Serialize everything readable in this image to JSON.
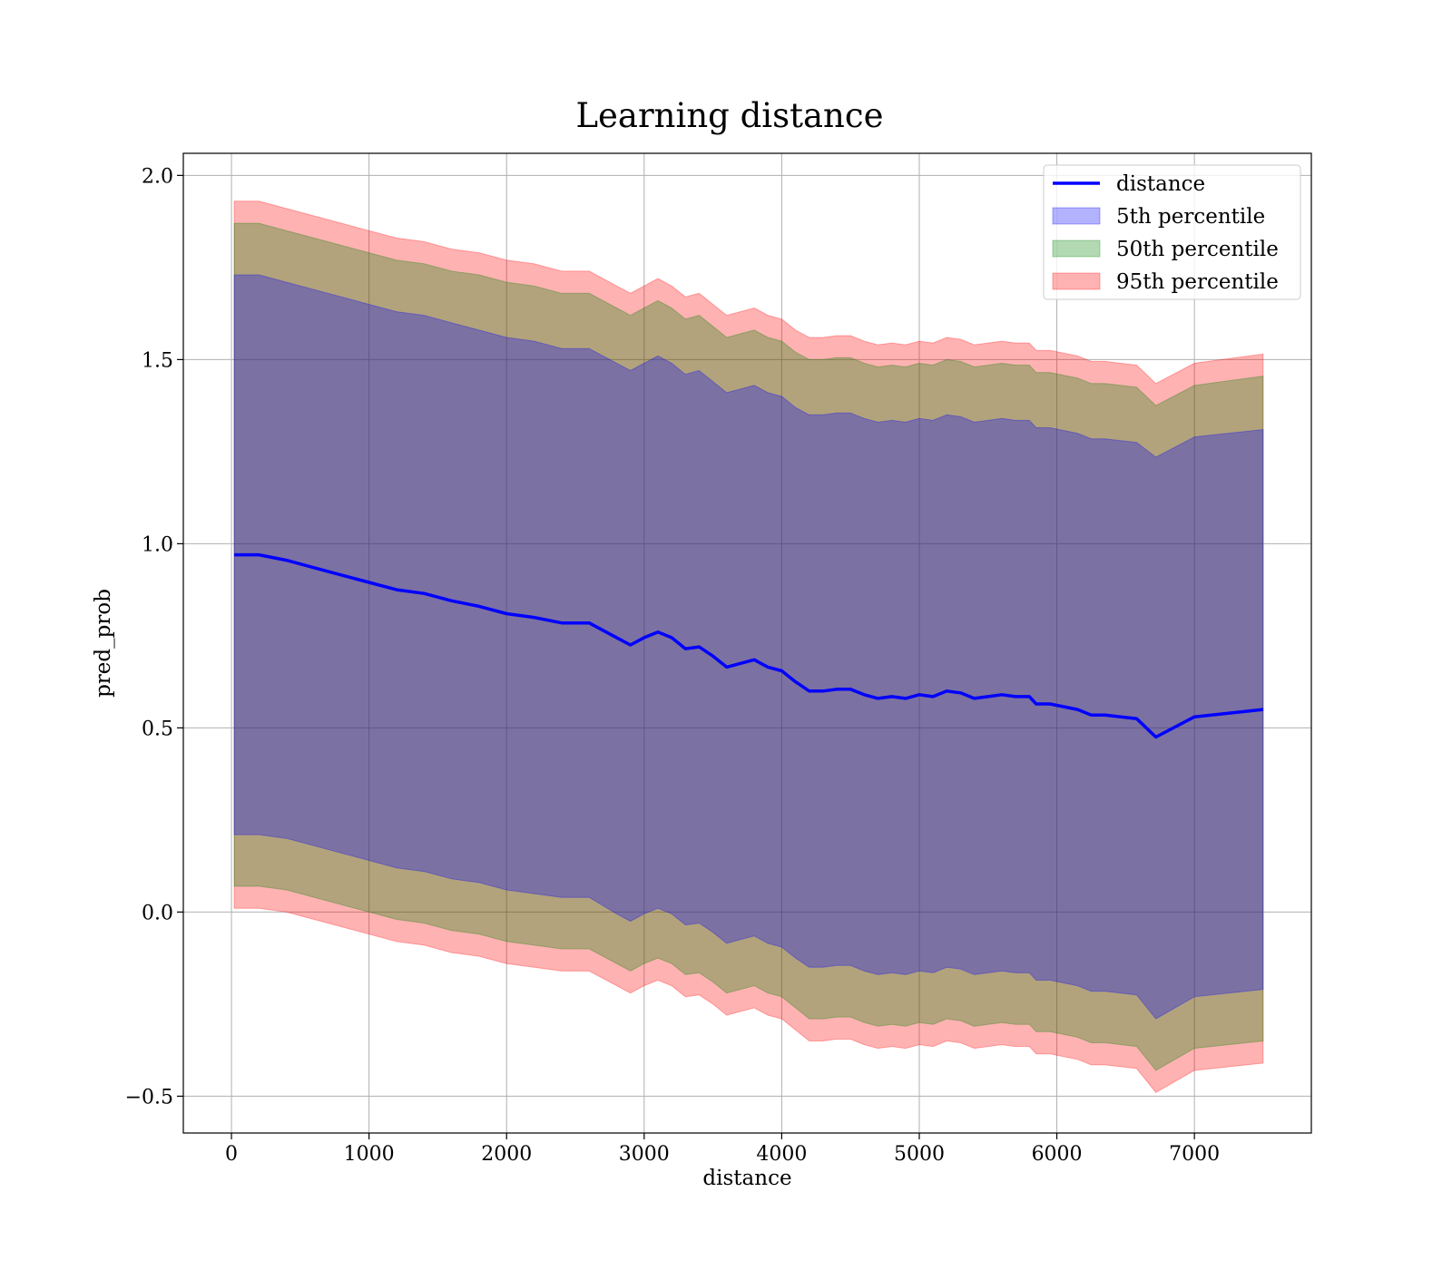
{
  "chart_data": {
    "type": "area",
    "title": "Learning distance",
    "xlabel": "distance",
    "ylabel": "pred_prob",
    "xlim": [
      -350,
      7850
    ],
    "ylim": [
      -0.6,
      2.06
    ],
    "xticks": [
      0,
      1000,
      2000,
      3000,
      4000,
      5000,
      6000,
      7000
    ],
    "xtick_labels": [
      "0",
      "1000",
      "2000",
      "3000",
      "4000",
      "5000",
      "6000",
      "7000"
    ],
    "yticks": [
      -0.5,
      0.0,
      0.5,
      1.0,
      1.5,
      2.0
    ],
    "ytick_labels": [
      "−0.5",
      "0.0",
      "0.5",
      "1.0",
      "1.5",
      "2.0"
    ],
    "grid": true,
    "legend_position": "top-right",
    "x": [
      20,
      200,
      400,
      600,
      800,
      1000,
      1200,
      1400,
      1600,
      1800,
      2000,
      2200,
      2400,
      2600,
      2800,
      2900,
      3000,
      3100,
      3200,
      3300,
      3400,
      3500,
      3600,
      3700,
      3800,
      3900,
      4000,
      4100,
      4200,
      4300,
      4400,
      4500,
      4600,
      4700,
      4800,
      4900,
      5000,
      5100,
      5200,
      5300,
      5400,
      5500,
      5600,
      5700,
      5800,
      5850,
      5950,
      6150,
      6250,
      6350,
      6580,
      6720,
      7000,
      7500
    ],
    "series": [
      {
        "name": "distance",
        "kind": "line",
        "color": "#0000ff",
        "values": [
          0.97,
          0.97,
          0.955,
          0.935,
          0.915,
          0.895,
          0.875,
          0.865,
          0.845,
          0.83,
          0.81,
          0.8,
          0.785,
          0.785,
          0.745,
          0.725,
          0.745,
          0.76,
          0.745,
          0.715,
          0.72,
          0.695,
          0.665,
          0.675,
          0.685,
          0.665,
          0.655,
          0.625,
          0.6,
          0.6,
          0.605,
          0.605,
          0.59,
          0.58,
          0.585,
          0.58,
          0.59,
          0.585,
          0.6,
          0.595,
          0.58,
          0.585,
          0.59,
          0.585,
          0.585,
          0.565,
          0.565,
          0.55,
          0.535,
          0.535,
          0.525,
          0.475,
          0.53,
          0.55
        ]
      },
      {
        "name": "5th percentile",
        "kind": "band",
        "color": "#0000ff",
        "upper": [
          1.73,
          1.73,
          1.71,
          1.69,
          1.67,
          1.65,
          1.63,
          1.62,
          1.6,
          1.58,
          1.56,
          1.55,
          1.53,
          1.53,
          1.49,
          1.47,
          1.49,
          1.51,
          1.49,
          1.46,
          1.47,
          1.44,
          1.41,
          1.42,
          1.43,
          1.41,
          1.4,
          1.37,
          1.35,
          1.35,
          1.355,
          1.355,
          1.34,
          1.33,
          1.335,
          1.33,
          1.34,
          1.335,
          1.35,
          1.345,
          1.33,
          1.335,
          1.34,
          1.335,
          1.335,
          1.315,
          1.315,
          1.3,
          1.285,
          1.285,
          1.275,
          1.235,
          1.29,
          1.31
        ],
        "lower": [
          0.21,
          0.21,
          0.2,
          0.18,
          0.16,
          0.14,
          0.12,
          0.11,
          0.09,
          0.08,
          0.06,
          0.05,
          0.04,
          0.04,
          -0.005,
          -0.025,
          -0.005,
          0.01,
          -0.005,
          -0.035,
          -0.03,
          -0.055,
          -0.085,
          -0.075,
          -0.065,
          -0.085,
          -0.095,
          -0.125,
          -0.15,
          -0.15,
          -0.145,
          -0.145,
          -0.16,
          -0.17,
          -0.165,
          -0.17,
          -0.16,
          -0.165,
          -0.15,
          -0.155,
          -0.17,
          -0.165,
          -0.16,
          -0.165,
          -0.165,
          -0.185,
          -0.185,
          -0.2,
          -0.215,
          -0.215,
          -0.225,
          -0.29,
          -0.23,
          -0.21
        ]
      },
      {
        "name": "50th percentile",
        "kind": "band",
        "color": "#008000",
        "upper": [
          1.87,
          1.87,
          1.85,
          1.83,
          1.81,
          1.79,
          1.77,
          1.76,
          1.74,
          1.73,
          1.71,
          1.7,
          1.68,
          1.68,
          1.64,
          1.62,
          1.64,
          1.66,
          1.64,
          1.61,
          1.62,
          1.59,
          1.56,
          1.57,
          1.58,
          1.56,
          1.55,
          1.52,
          1.5,
          1.5,
          1.505,
          1.505,
          1.49,
          1.48,
          1.485,
          1.48,
          1.49,
          1.485,
          1.5,
          1.495,
          1.48,
          1.485,
          1.49,
          1.485,
          1.485,
          1.465,
          1.465,
          1.45,
          1.435,
          1.435,
          1.425,
          1.375,
          1.43,
          1.455
        ],
        "lower": [
          0.07,
          0.07,
          0.06,
          0.04,
          0.02,
          0.0,
          -0.02,
          -0.03,
          -0.05,
          -0.06,
          -0.08,
          -0.09,
          -0.1,
          -0.1,
          -0.14,
          -0.16,
          -0.14,
          -0.125,
          -0.14,
          -0.17,
          -0.165,
          -0.19,
          -0.22,
          -0.21,
          -0.2,
          -0.22,
          -0.23,
          -0.26,
          -0.29,
          -0.29,
          -0.285,
          -0.285,
          -0.3,
          -0.31,
          -0.305,
          -0.31,
          -0.3,
          -0.305,
          -0.29,
          -0.295,
          -0.31,
          -0.305,
          -0.3,
          -0.305,
          -0.305,
          -0.325,
          -0.325,
          -0.34,
          -0.355,
          -0.355,
          -0.365,
          -0.43,
          -0.37,
          -0.35
        ]
      },
      {
        "name": "95th percentile",
        "kind": "band",
        "color": "#ff0000",
        "upper": [
          1.93,
          1.93,
          1.91,
          1.89,
          1.87,
          1.85,
          1.83,
          1.82,
          1.8,
          1.79,
          1.77,
          1.76,
          1.74,
          1.74,
          1.7,
          1.68,
          1.7,
          1.72,
          1.7,
          1.67,
          1.68,
          1.65,
          1.62,
          1.63,
          1.64,
          1.62,
          1.61,
          1.58,
          1.56,
          1.56,
          1.565,
          1.565,
          1.55,
          1.54,
          1.545,
          1.54,
          1.55,
          1.545,
          1.56,
          1.555,
          1.54,
          1.545,
          1.55,
          1.545,
          1.545,
          1.525,
          1.525,
          1.51,
          1.495,
          1.495,
          1.485,
          1.435,
          1.49,
          1.515
        ],
        "lower": [
          0.01,
          0.01,
          0.0,
          -0.02,
          -0.04,
          -0.06,
          -0.08,
          -0.09,
          -0.11,
          -0.12,
          -0.14,
          -0.15,
          -0.16,
          -0.16,
          -0.2,
          -0.22,
          -0.2,
          -0.185,
          -0.2,
          -0.23,
          -0.225,
          -0.25,
          -0.28,
          -0.27,
          -0.26,
          -0.28,
          -0.29,
          -0.32,
          -0.35,
          -0.35,
          -0.345,
          -0.345,
          -0.36,
          -0.37,
          -0.365,
          -0.37,
          -0.36,
          -0.365,
          -0.35,
          -0.355,
          -0.37,
          -0.365,
          -0.36,
          -0.365,
          -0.365,
          -0.385,
          -0.385,
          -0.4,
          -0.415,
          -0.415,
          -0.425,
          -0.49,
          -0.43,
          -0.41
        ]
      }
    ]
  }
}
